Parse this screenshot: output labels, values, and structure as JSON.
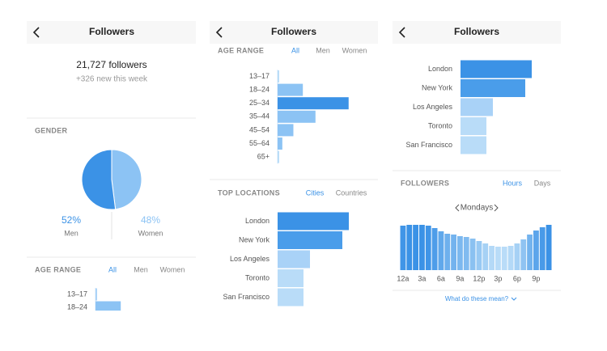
{
  "panel1": {
    "header": {
      "title": "Followers"
    },
    "followers": "21,727 followers",
    "new_this_week": "+326 new this week",
    "gender": {
      "type": "pie",
      "title": "GENDER",
      "series": [
        {
          "name": "Men",
          "value": 52,
          "value_label": "52%",
          "color": "#3b92e6"
        },
        {
          "name": "Women",
          "value": 48,
          "value_label": "48%",
          "color": "#8cc3f4"
        }
      ]
    },
    "age_range": {
      "type": "bar",
      "title": "AGE RANGE",
      "tabs": [
        "All",
        "Men",
        "Women"
      ],
      "categories": [
        "13–17",
        "18–24"
      ],
      "values": [
        1,
        16
      ],
      "colors": [
        "#a9d2f7",
        "#8cc3f4"
      ]
    }
  },
  "panel2": {
    "header": {
      "title": "Followers"
    },
    "age_range": {
      "type": "bar",
      "title": "AGE RANGE",
      "tabs": [
        "All",
        "Men",
        "Women"
      ],
      "categories": [
        "13–17",
        "18–24",
        "25–34",
        "35–44",
        "45–54",
        "55–64",
        "65+"
      ],
      "values": [
        1,
        16,
        45,
        24,
        10,
        3,
        1
      ],
      "colors": [
        "#b9dcf8",
        "#8cc3f4",
        "#3b92e6",
        "#8cc3f4",
        "#8cc3f4",
        "#8cc3f4",
        "#b9dcf8"
      ]
    },
    "top_locations": {
      "type": "bar",
      "title": "TOP LOCATIONS",
      "tabs": [
        "Cities",
        "Countries"
      ],
      "categories": [
        "London",
        "New York",
        "Los Angeles",
        "Toronto",
        "San Francisco"
      ],
      "values": [
        11,
        10,
        5,
        4,
        4
      ],
      "colors": [
        "#3b92e6",
        "#4a9dea",
        "#a9d2f7",
        "#b9dcf8",
        "#b9dcf8"
      ]
    }
  },
  "panel3": {
    "header": {
      "title": "Followers"
    },
    "top_locations": {
      "type": "bar",
      "categories": [
        "London",
        "New York",
        "Los Angeles",
        "Toronto",
        "San Francisco"
      ],
      "values": [
        11,
        10,
        5,
        4,
        4
      ],
      "colors": [
        "#3b92e6",
        "#4a9dea",
        "#a9d2f7",
        "#b9dcf8",
        "#b9dcf8"
      ]
    },
    "followers_chart": {
      "type": "bar",
      "title": "FOLLOWERS",
      "tabs": [
        "Hours",
        "Days"
      ],
      "day": "Mondays",
      "categories": [
        "12a",
        null,
        null,
        "3a",
        null,
        null,
        "6a",
        null,
        null,
        "9a",
        null,
        null,
        "12p",
        null,
        null,
        "3p",
        null,
        null,
        "6p",
        null,
        null,
        "9p",
        null,
        null
      ],
      "values": [
        55,
        56,
        56,
        56,
        55,
        52,
        48,
        45,
        44,
        42,
        41,
        39,
        36,
        33,
        30,
        29,
        29,
        30,
        33,
        38,
        44,
        49,
        53,
        56
      ],
      "color": "#3b92e6",
      "light_color": "#b9dcf8"
    },
    "link": "What do these mean?"
  }
}
